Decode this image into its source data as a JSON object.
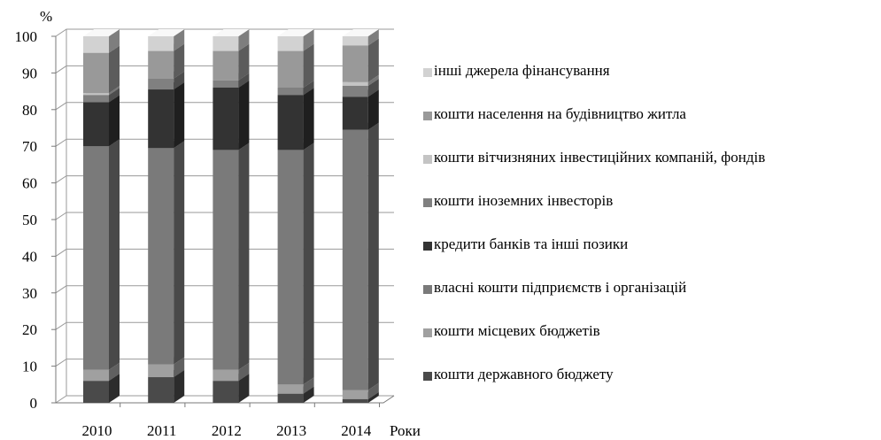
{
  "chart_data": {
    "type": "bar",
    "stacked": true,
    "three_d": true,
    "categories": [
      "2010",
      "2011",
      "2012",
      "2013",
      "2014"
    ],
    "xlabel": "Роки",
    "ylabel": "%",
    "ylim": [
      0,
      100
    ],
    "yticks": [
      0,
      10,
      20,
      30,
      40,
      50,
      60,
      70,
      80,
      90,
      100
    ],
    "grid": true,
    "legend_position": "right",
    "series": [
      {
        "name": "кошти державного бюджету",
        "color": "#4a4a4a",
        "values": [
          6,
          7,
          6,
          2.5,
          1
        ]
      },
      {
        "name": "кошти місцевих бюджетів",
        "color": "#a0a0a0",
        "values": [
          3,
          3.5,
          3,
          2.5,
          2.5
        ]
      },
      {
        "name": "власні кошти підприємств і організацій",
        "color": "#7a7a7a",
        "values": [
          61,
          59,
          60,
          64,
          71
        ]
      },
      {
        "name": "кредити банків та інші позики",
        "color": "#333333",
        "values": [
          12,
          16,
          17,
          15,
          9
        ]
      },
      {
        "name": "кошти іноземних інвесторів",
        "color": "#808080",
        "values": [
          2,
          3,
          2,
          2,
          3
        ]
      },
      {
        "name": "кошти вітчизняних інвестиційних компаній, фондів",
        "color": "#c4c4c4",
        "values": [
          0.5,
          0,
          0,
          0,
          1
        ]
      },
      {
        "name": "кошти населення на будівництво житла",
        "color": "#999999",
        "values": [
          11,
          7.5,
          8,
          10,
          10
        ]
      },
      {
        "name": "інші джерела фінансування",
        "color": "#d2d2d2",
        "values": [
          4.5,
          4,
          4,
          4,
          2.5
        ]
      }
    ]
  }
}
